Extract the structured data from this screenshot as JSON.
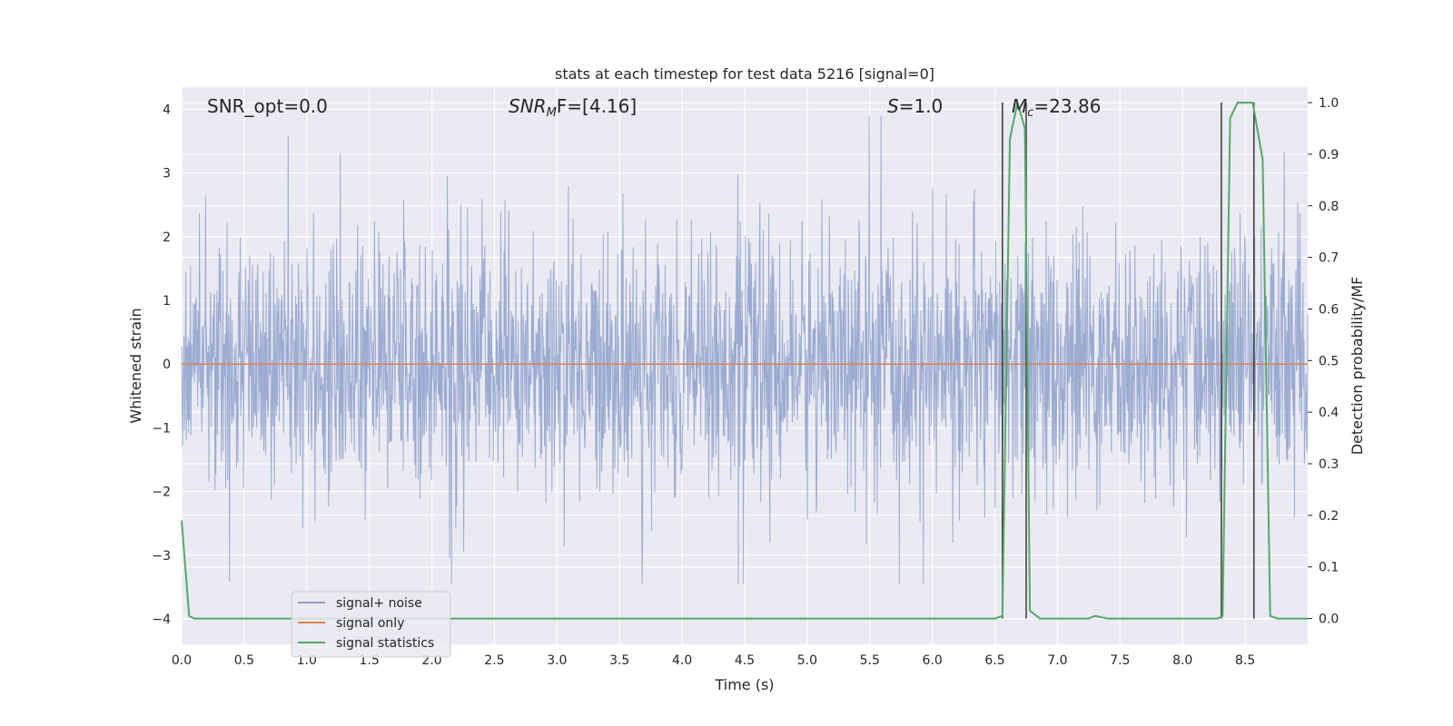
{
  "chart_data": {
    "type": "line",
    "title": "stats at each timestep for test data 5216 [signal=0]",
    "xlabel": "Time (s)",
    "ylabel_left": "Whitened strain",
    "ylabel_right": "Detection probability/MF",
    "xlim": [
      0.0,
      9.0
    ],
    "ylim_left": [
      -4.4,
      4.35
    ],
    "ylim_right": [
      -0.05,
      1.03
    ],
    "x_ticks": [
      "0.0",
      "0.5",
      "1.0",
      "1.5",
      "2.0",
      "2.5",
      "3.0",
      "3.5",
      "4.0",
      "4.5",
      "5.0",
      "5.5",
      "6.0",
      "6.5",
      "7.0",
      "7.5",
      "8.0",
      "8.5"
    ],
    "x_tick_values": [
      0.0,
      0.5,
      1.0,
      1.5,
      2.0,
      2.5,
      3.0,
      3.5,
      4.0,
      4.5,
      5.0,
      5.5,
      6.0,
      6.5,
      7.0,
      7.5,
      8.0,
      8.5
    ],
    "y_left_ticks": [
      "−4",
      "−3",
      "−2",
      "−1",
      "0",
      "1",
      "2",
      "3",
      "4"
    ],
    "y_left_tick_values": [
      -4,
      -3,
      -2,
      -1,
      0,
      1,
      2,
      3,
      4
    ],
    "y_right_ticks": [
      "0.0",
      "0.1",
      "0.2",
      "0.3",
      "0.4",
      "0.5",
      "0.6",
      "0.7",
      "0.8",
      "0.9",
      "1.0"
    ],
    "y_right_tick_values": [
      0.0,
      0.1,
      0.2,
      0.3,
      0.4,
      0.5,
      0.6,
      0.7,
      0.8,
      0.9,
      1.0
    ],
    "grid": true,
    "legend_position": "lower-left",
    "annotations": {
      "snr_opt": "SNR_opt=0.0",
      "snr_mf_label": "SNR",
      "snr_mf_sub": "M",
      "snr_mf_suffix": "F=[4.16]",
      "s_label": "S",
      "s_value": "=1.0",
      "mc_label": "M",
      "mc_sub": "c",
      "mc_value": "=23.86"
    },
    "series": [
      {
        "name": "signal+ noise",
        "color": "#8da0cb",
        "kind": "noise",
        "axis": "left",
        "typical_range": [
          -1.6,
          1.6
        ],
        "extreme_range": [
          -3.45,
          3.9
        ]
      },
      {
        "name": "signal only",
        "color": "#dd8452",
        "kind": "flat",
        "axis": "left",
        "value": 0
      },
      {
        "name": "signal statistics",
        "color": "#55a868",
        "axis": "right",
        "x": [
          0.0,
          0.06,
          0.1,
          6.5,
          6.56,
          6.62,
          6.68,
          6.74,
          6.78,
          6.86,
          7.25,
          7.3,
          7.4,
          8.28,
          8.32,
          8.38,
          8.44,
          8.56,
          8.64,
          8.7,
          8.76,
          9.0
        ],
        "y": [
          0.19,
          0.005,
          0.0,
          0.0,
          0.005,
          0.93,
          1.0,
          0.95,
          0.015,
          0.0,
          0.0,
          0.005,
          0.0,
          0.0,
          0.005,
          0.97,
          1.0,
          1.0,
          0.89,
          0.005,
          0.0,
          0.0
        ]
      }
    ],
    "vertical_markers": [
      {
        "x": 6.56,
        "y_top": 1.0
      },
      {
        "x": 6.75,
        "y_top": 1.0
      },
      {
        "x": 8.31,
        "y_top": 1.0
      },
      {
        "x": 8.57,
        "y_top": 1.0
      }
    ]
  }
}
